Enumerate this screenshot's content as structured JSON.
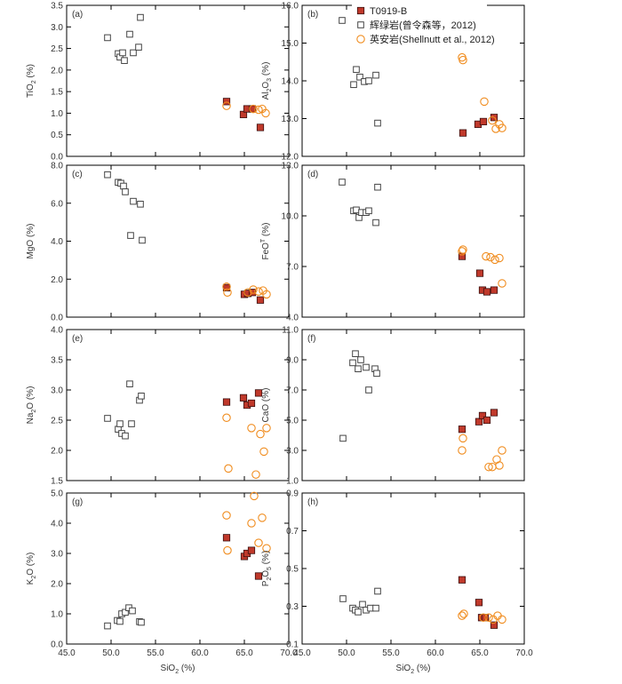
{
  "legend": {
    "series": [
      {
        "key": "T0919B",
        "label": "T0919-B",
        "marker": "square-filled",
        "fill": "#c0392b",
        "stroke": "#3a0f0f"
      },
      {
        "key": "diabase",
        "label": "辉绿岩(曾令森等，2012)",
        "marker": "square-open",
        "fill": "#ffffff",
        "stroke": "#444444"
      },
      {
        "key": "andesite",
        "label": "英安岩(Shellnutt et al., 2012)",
        "marker": "circle-open",
        "fill": "#ffffff",
        "stroke": "#f08c1e"
      }
    ]
  },
  "chart_data": [
    {
      "id": "a",
      "type": "scatter",
      "panel_label": "(a)",
      "xlabel": "",
      "ylabel": "TiO2 (%)",
      "xlim": [
        45,
        70
      ],
      "ylim": [
        0,
        3.5
      ],
      "xticks": [
        "45.0",
        "50.0",
        "55.0",
        "60.0",
        "65.0",
        "70.0"
      ],
      "show_xtick_labels": false,
      "yticks": [
        "0.0",
        "0.5",
        "1.0",
        "1.5",
        "2.0",
        "2.5",
        "3.0",
        "3.5"
      ],
      "series": [
        {
          "key": "diabase",
          "points": [
            [
              49.6,
              2.75
            ],
            [
              50.8,
              2.38
            ],
            [
              51.0,
              2.3
            ],
            [
              51.3,
              2.4
            ],
            [
              51.5,
              2.22
            ],
            [
              52.1,
              2.83
            ],
            [
              52.5,
              2.4
            ],
            [
              53.1,
              2.53
            ],
            [
              53.3,
              3.22
            ]
          ]
        },
        {
          "key": "T0919B",
          "points": [
            [
              63.0,
              1.27
            ],
            [
              64.9,
              0.97
            ],
            [
              65.3,
              1.1
            ],
            [
              65.9,
              1.1
            ],
            [
              66.8,
              0.67
            ]
          ]
        },
        {
          "key": "andesite",
          "points": [
            [
              63.0,
              1.17
            ],
            [
              66.0,
              1.1
            ],
            [
              66.6,
              1.08
            ],
            [
              67.0,
              1.1
            ],
            [
              67.4,
              1.0
            ]
          ]
        }
      ]
    },
    {
      "id": "b",
      "type": "scatter",
      "panel_label": "(b)",
      "xlabel": "",
      "ylabel": "Al2O3 (%)",
      "xlim": [
        45,
        70
      ],
      "ylim": [
        12,
        16
      ],
      "xticks": [
        "45.0",
        "50.0",
        "55.0",
        "60.0",
        "65.0",
        "70.0"
      ],
      "show_xtick_labels": false,
      "yticks": [
        "12.0",
        "13.0",
        "14.0",
        "15.0",
        "16.0"
      ],
      "series": [
        {
          "key": "diabase",
          "points": [
            [
              49.5,
              15.6
            ],
            [
              50.8,
              13.9
            ],
            [
              51.1,
              14.3
            ],
            [
              51.5,
              14.1
            ],
            [
              52.0,
              13.98
            ],
            [
              52.5,
              14.0
            ],
            [
              53.3,
              14.15
            ],
            [
              53.5,
              12.88
            ]
          ]
        },
        {
          "key": "T0919B",
          "points": [
            [
              63.1,
              12.62
            ],
            [
              64.8,
              12.85
            ],
            [
              65.4,
              12.92
            ],
            [
              66.6,
              13.03
            ]
          ]
        },
        {
          "key": "andesite",
          "points": [
            [
              63.0,
              14.62
            ],
            [
              63.1,
              14.55
            ],
            [
              65.5,
              13.45
            ],
            [
              66.4,
              12.95
            ],
            [
              66.8,
              12.73
            ],
            [
              67.2,
              12.85
            ],
            [
              67.5,
              12.75
            ]
          ]
        }
      ]
    },
    {
      "id": "c",
      "type": "scatter",
      "panel_label": "(c)",
      "xlabel": "",
      "ylabel": "MgO (%)",
      "xlim": [
        45,
        70
      ],
      "ylim": [
        0,
        8
      ],
      "xticks": [
        "45.0",
        "50.0",
        "55.0",
        "60.0",
        "65.0",
        "70.0"
      ],
      "show_xtick_labels": false,
      "yticks": [
        "0.0",
        "2.0",
        "4.0",
        "6.0",
        "8.0"
      ],
      "series": [
        {
          "key": "diabase",
          "points": [
            [
              49.6,
              7.5
            ],
            [
              50.8,
              7.1
            ],
            [
              51.1,
              7.05
            ],
            [
              51.4,
              6.9
            ],
            [
              51.6,
              6.6
            ],
            [
              52.5,
              6.1
            ],
            [
              53.3,
              5.95
            ],
            [
              52.2,
              4.3
            ],
            [
              53.5,
              4.05
            ]
          ]
        },
        {
          "key": "T0919B",
          "points": [
            [
              63.0,
              1.55
            ],
            [
              65.0,
              1.2
            ],
            [
              65.4,
              1.25
            ],
            [
              65.9,
              1.3
            ],
            [
              66.8,
              0.9
            ]
          ]
        },
        {
          "key": "andesite",
          "points": [
            [
              63.0,
              1.6
            ],
            [
              63.1,
              1.3
            ],
            [
              65.4,
              1.3
            ],
            [
              66.0,
              1.45
            ],
            [
              66.6,
              1.35
            ],
            [
              67.1,
              1.4
            ],
            [
              67.5,
              1.2
            ]
          ]
        }
      ]
    },
    {
      "id": "d",
      "type": "scatter",
      "panel_label": "(d)",
      "xlabel": "",
      "ylabel": "FeOT (%)",
      "xlim": [
        45,
        70
      ],
      "ylim": [
        4,
        13
      ],
      "xticks": [
        "45.0",
        "50.0",
        "55.0",
        "60.0",
        "65.0",
        "70.0"
      ],
      "show_xtick_labels": false,
      "yticks": [
        "4.0",
        "7.0",
        "10.0",
        "13.0"
      ],
      "series": [
        {
          "key": "diabase",
          "points": [
            [
              49.5,
              12.0
            ],
            [
              50.8,
              10.3
            ],
            [
              51.1,
              10.35
            ],
            [
              51.4,
              9.9
            ],
            [
              51.7,
              10.2
            ],
            [
              52.2,
              10.2
            ],
            [
              52.5,
              10.3
            ],
            [
              53.3,
              9.6
            ],
            [
              53.5,
              11.7
            ]
          ]
        },
        {
          "key": "T0919B",
          "points": [
            [
              63.0,
              7.6
            ],
            [
              65.0,
              6.6
            ],
            [
              65.3,
              5.6
            ],
            [
              65.8,
              5.5
            ],
            [
              66.6,
              5.6
            ]
          ]
        },
        {
          "key": "andesite",
          "points": [
            [
              63.0,
              7.9
            ],
            [
              63.1,
              8.0
            ],
            [
              65.7,
              7.6
            ],
            [
              66.2,
              7.55
            ],
            [
              66.7,
              7.4
            ],
            [
              67.2,
              7.5
            ],
            [
              67.5,
              6.0
            ]
          ]
        }
      ]
    },
    {
      "id": "e",
      "type": "scatter",
      "panel_label": "(e)",
      "xlabel": "",
      "ylabel": "Na2O (%)",
      "xlim": [
        45,
        70
      ],
      "ylim": [
        1.5,
        4.0
      ],
      "xticks": [
        "45.0",
        "50.0",
        "55.0",
        "60.0",
        "65.0",
        "70.0"
      ],
      "show_xtick_labels": false,
      "yticks": [
        "1.5",
        "2.0",
        "2.5",
        "3.0",
        "3.5",
        "4.0"
      ],
      "series": [
        {
          "key": "diabase",
          "points": [
            [
              49.6,
              2.53
            ],
            [
              50.8,
              2.35
            ],
            [
              51.0,
              2.44
            ],
            [
              51.2,
              2.28
            ],
            [
              51.6,
              2.24
            ],
            [
              52.1,
              3.1
            ],
            [
              52.3,
              2.44
            ],
            [
              53.2,
              2.83
            ],
            [
              53.4,
              2.9
            ]
          ]
        },
        {
          "key": "T0919B",
          "points": [
            [
              63.0,
              2.8
            ],
            [
              64.9,
              2.87
            ],
            [
              65.3,
              2.75
            ],
            [
              65.8,
              2.78
            ],
            [
              66.6,
              2.95
            ]
          ]
        },
        {
          "key": "andesite",
          "points": [
            [
              63.0,
              2.54
            ],
            [
              63.2,
              1.7
            ],
            [
              65.8,
              2.37
            ],
            [
              66.3,
              1.6
            ],
            [
              66.8,
              2.27
            ],
            [
              67.2,
              1.98
            ],
            [
              67.5,
              2.37
            ]
          ]
        }
      ]
    },
    {
      "id": "f",
      "type": "scatter",
      "panel_label": "(f)",
      "xlabel": "",
      "ylabel": "CaO (%)",
      "xlim": [
        45,
        70
      ],
      "ylim": [
        1.0,
        11.0
      ],
      "xticks": [
        "45.0",
        "50.0",
        "55.0",
        "60.0",
        "65.0",
        "70.0"
      ],
      "show_xtick_labels": false,
      "yticks": [
        "1.0",
        "3.0",
        "5.0",
        "7.0",
        "9.0",
        "11.0"
      ],
      "series": [
        {
          "key": "diabase",
          "points": [
            [
              49.6,
              3.8
            ],
            [
              50.7,
              8.8
            ],
            [
              51.0,
              9.4
            ],
            [
              51.3,
              8.4
            ],
            [
              51.6,
              9.0
            ],
            [
              52.2,
              8.5
            ],
            [
              52.5,
              7.0
            ],
            [
              53.2,
              8.4
            ],
            [
              53.4,
              8.1
            ]
          ]
        },
        {
          "key": "T0919B",
          "points": [
            [
              63.0,
              4.4
            ],
            [
              64.9,
              4.9
            ],
            [
              65.3,
              5.3
            ],
            [
              65.8,
              5.0
            ],
            [
              66.6,
              5.5
            ]
          ]
        },
        {
          "key": "andesite",
          "points": [
            [
              63.0,
              3.0
            ],
            [
              63.1,
              3.8
            ],
            [
              66.0,
              1.9
            ],
            [
              66.4,
              1.9
            ],
            [
              66.9,
              2.4
            ],
            [
              67.2,
              2.0
            ],
            [
              67.5,
              3.0
            ]
          ]
        }
      ]
    },
    {
      "id": "g",
      "type": "scatter",
      "panel_label": "(g)",
      "xlabel": "SiO2 (%)",
      "ylabel": "K2O (%)",
      "xlim": [
        45,
        70
      ],
      "ylim": [
        0,
        5
      ],
      "xticks": [
        "45.0",
        "50.0",
        "55.0",
        "60.0",
        "65.0",
        "70.0"
      ],
      "show_xtick_labels": true,
      "yticks": [
        "0.0",
        "1.0",
        "2.0",
        "3.0",
        "4.0",
        "5.0"
      ],
      "series": [
        {
          "key": "diabase",
          "points": [
            [
              49.6,
              0.6
            ],
            [
              50.7,
              0.78
            ],
            [
              51.0,
              0.75
            ],
            [
              51.2,
              1.0
            ],
            [
              51.6,
              1.05
            ],
            [
              52.0,
              1.2
            ],
            [
              52.4,
              1.1
            ],
            [
              53.2,
              0.74
            ],
            [
              53.4,
              0.72
            ]
          ]
        },
        {
          "key": "T0919B",
          "points": [
            [
              63.0,
              3.52
            ],
            [
              65.0,
              2.9
            ],
            [
              65.3,
              3.0
            ],
            [
              65.8,
              3.1
            ],
            [
              66.6,
              2.25
            ]
          ]
        },
        {
          "key": "andesite",
          "points": [
            [
              63.0,
              4.26
            ],
            [
              63.1,
              3.1
            ],
            [
              65.8,
              4.0
            ],
            [
              66.1,
              4.9
            ],
            [
              66.6,
              3.35
            ],
            [
              67.0,
              4.18
            ],
            [
              67.5,
              3.17
            ]
          ]
        }
      ]
    },
    {
      "id": "h",
      "type": "scatter",
      "panel_label": "(h)",
      "xlabel": "SiO2 (%)",
      "ylabel": "P2O5 (%)",
      "xlim": [
        45,
        70
      ],
      "ylim": [
        0.1,
        0.9
      ],
      "xticks": [
        "45.0",
        "50.0",
        "55.0",
        "60.0",
        "65.0",
        "70.0"
      ],
      "show_xtick_labels": true,
      "yticks": [
        "0.1",
        "0.3",
        "0.5",
        "0.7",
        "0.9"
      ],
      "series": [
        {
          "key": "diabase",
          "points": [
            [
              49.6,
              0.34
            ],
            [
              50.7,
              0.29
            ],
            [
              51.0,
              0.28
            ],
            [
              51.3,
              0.27
            ],
            [
              51.8,
              0.31
            ],
            [
              52.2,
              0.28
            ],
            [
              52.7,
              0.29
            ],
            [
              53.3,
              0.29
            ],
            [
              53.5,
              0.38
            ]
          ]
        },
        {
          "key": "T0919B",
          "points": [
            [
              63.0,
              0.44
            ],
            [
              64.9,
              0.32
            ],
            [
              65.2,
              0.24
            ],
            [
              65.6,
              0.24
            ],
            [
              66.6,
              0.2
            ]
          ]
        },
        {
          "key": "andesite",
          "points": [
            [
              63.0,
              0.25
            ],
            [
              63.2,
              0.26
            ],
            [
              65.4,
              0.24
            ],
            [
              66.0,
              0.24
            ],
            [
              66.5,
              0.23
            ],
            [
              67.0,
              0.25
            ],
            [
              67.5,
              0.23
            ]
          ]
        }
      ]
    }
  ]
}
